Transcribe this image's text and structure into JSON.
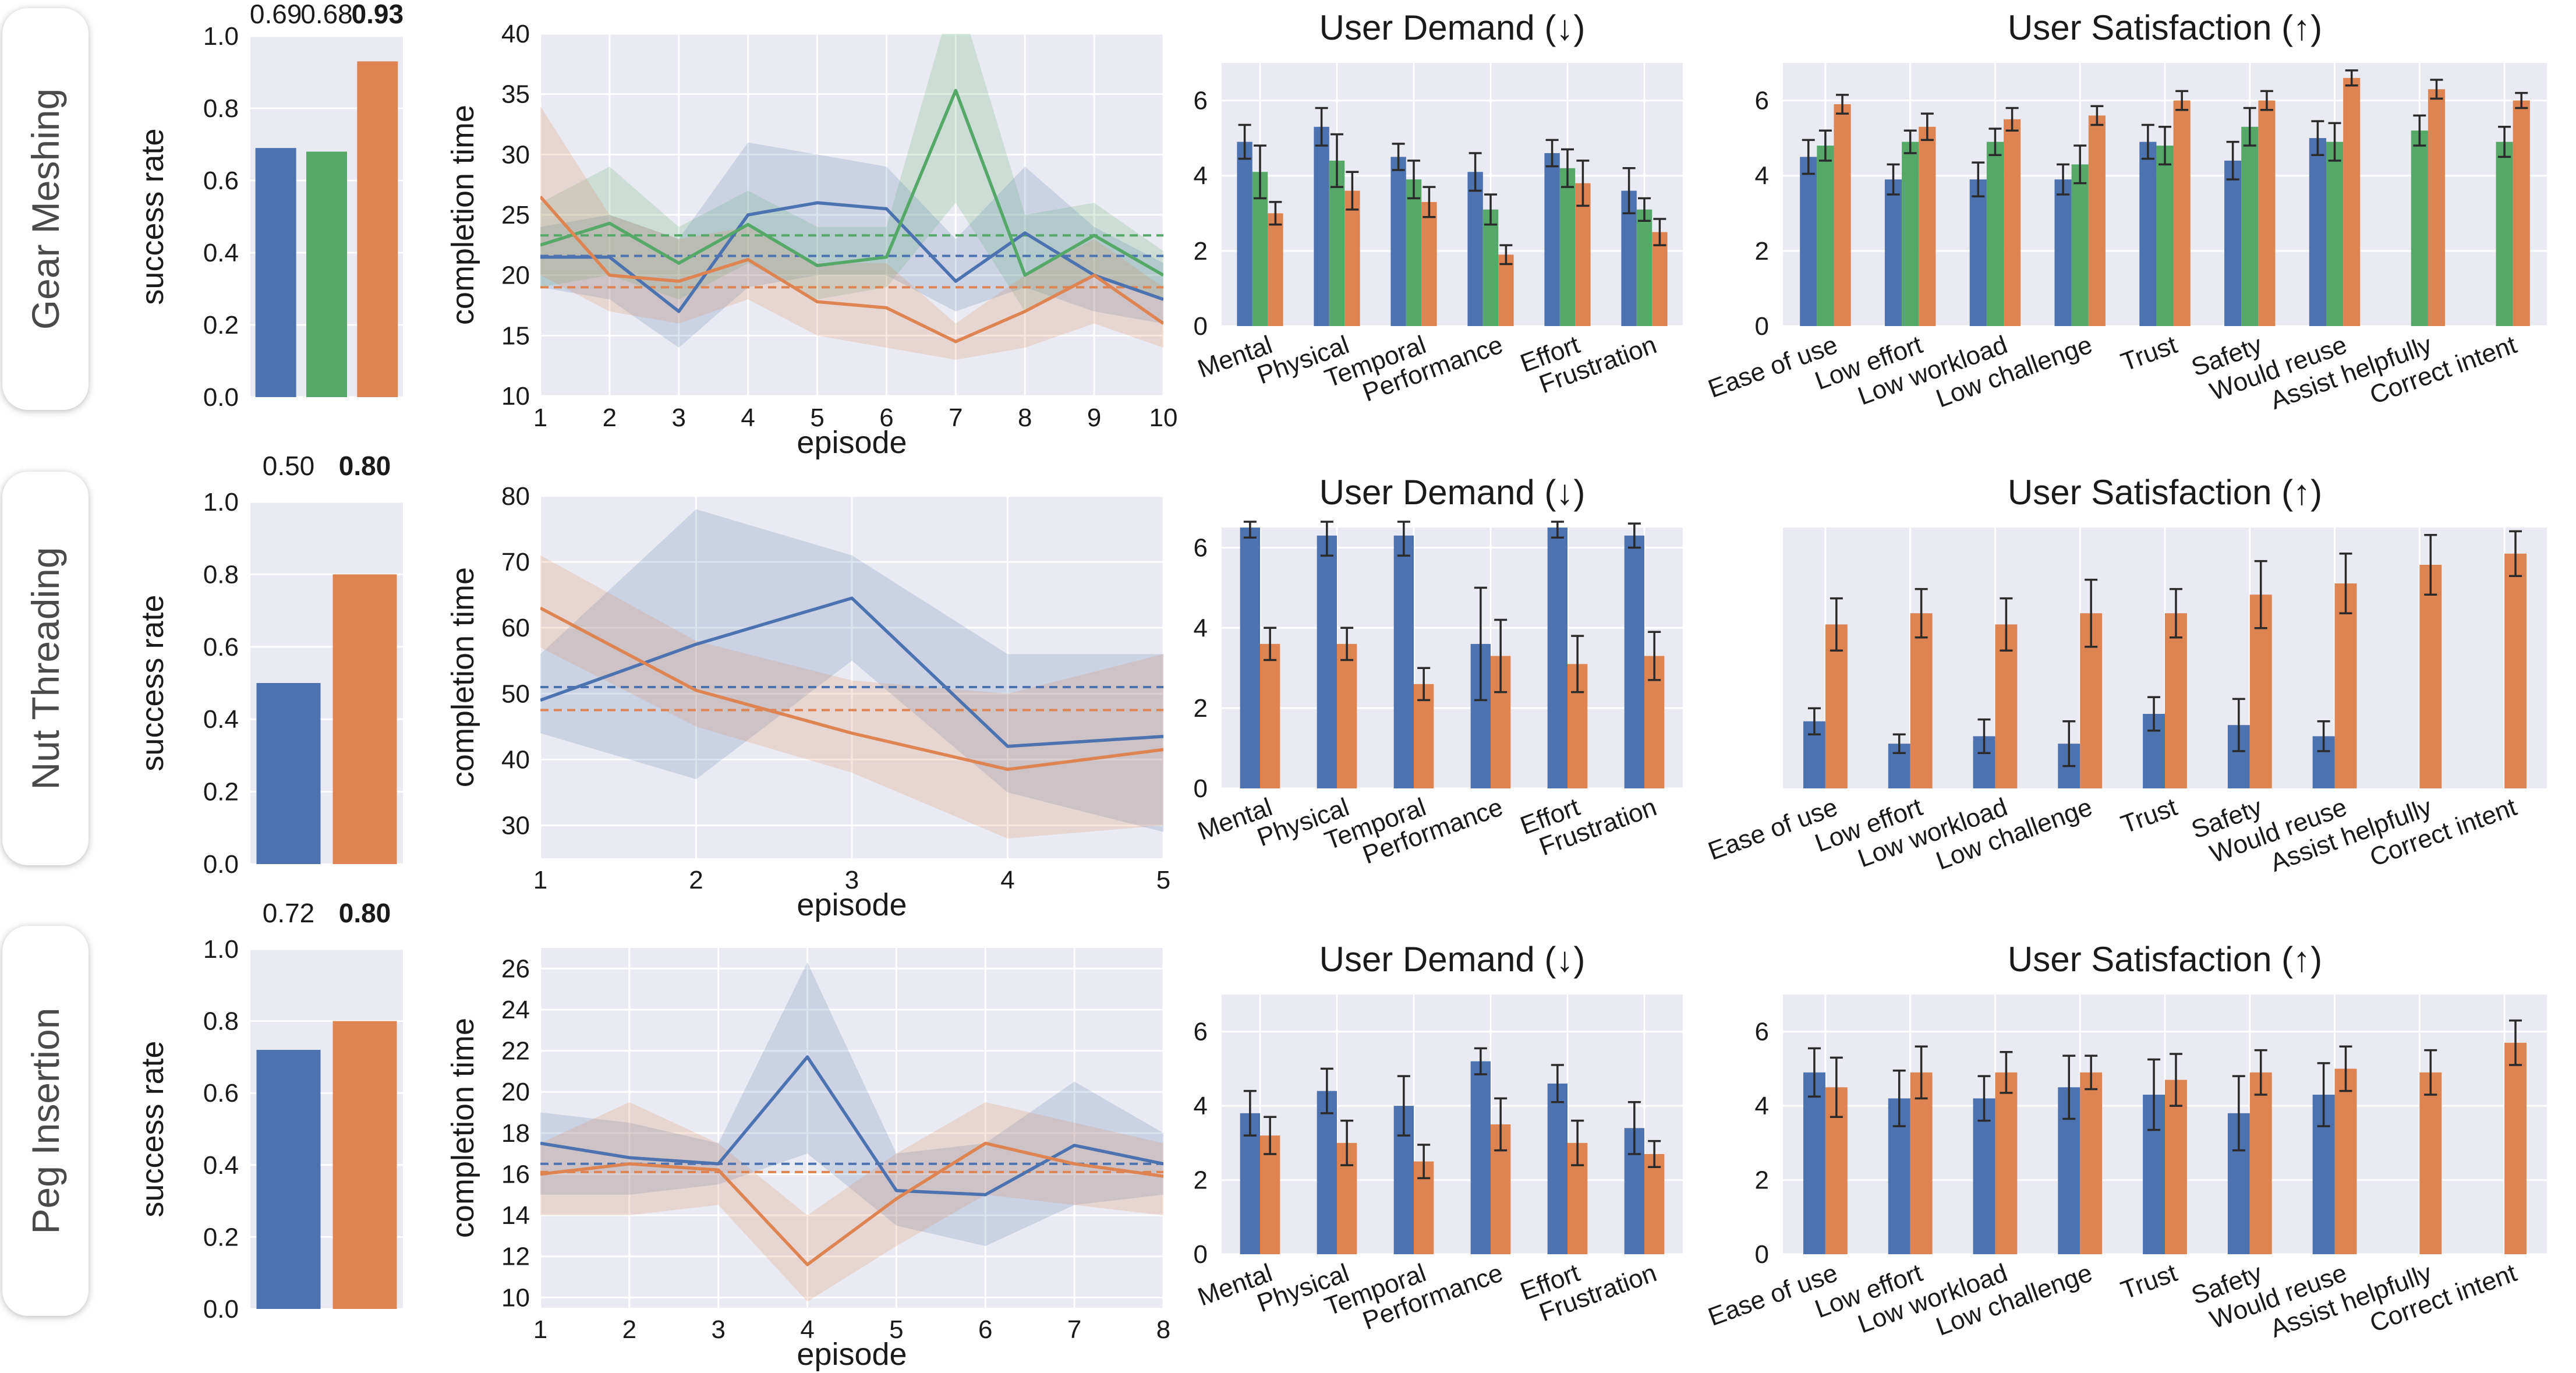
{
  "colors": {
    "baseline": "#4c72b0",
    "green": "#55a868",
    "ours": "#dd8452",
    "panel_bg": "#eaeaf2",
    "grid": "#ffffff"
  },
  "rows": [
    {
      "label": "Gear Meshing"
    },
    {
      "label": "Nut Threading"
    },
    {
      "label": "Peg Insertion"
    }
  ],
  "chart_data": [
    {
      "id": "gm-success",
      "type": "bar",
      "ylabel": "success rate",
      "ylim": [
        0,
        1.0
      ],
      "yticks": [
        "0.0",
        "0.2",
        "0.4",
        "0.6",
        "0.8",
        "1.0"
      ],
      "values": [
        0.69,
        0.68,
        0.93
      ],
      "labels": [
        "0.69",
        "0.68",
        "0.93"
      ],
      "bold": [
        false,
        false,
        true
      ],
      "colors": [
        "baseline",
        "green",
        "ours"
      ]
    },
    {
      "id": "gm-time",
      "type": "line",
      "xlabel": "episode",
      "ylabel": "completion time",
      "xlim": [
        1,
        10
      ],
      "ylim": [
        10,
        40
      ],
      "xticks": [
        "1",
        "2",
        "3",
        "4",
        "5",
        "6",
        "7",
        "8",
        "9",
        "10"
      ],
      "yticks": [
        "10",
        "15",
        "20",
        "25",
        "30",
        "35",
        "40"
      ],
      "series": [
        {
          "color": "baseline",
          "x": [
            1,
            2,
            3,
            4,
            5,
            6,
            7,
            8,
            9,
            10
          ],
          "y": [
            21.5,
            21.5,
            17,
            25,
            26,
            25.5,
            19.5,
            23.5,
            20,
            18
          ],
          "lower": [
            19,
            18,
            14,
            19,
            20,
            20,
            17,
            19,
            17,
            16
          ],
          "upper": [
            24,
            25,
            23,
            31,
            30,
            29,
            23,
            29,
            24,
            21
          ],
          "mean": 21.6
        },
        {
          "color": "green",
          "x": [
            1,
            2,
            3,
            4,
            5,
            6,
            7,
            8,
            9,
            10
          ],
          "y": [
            22.5,
            24.3,
            21,
            24.2,
            20.8,
            21.5,
            35.3,
            20,
            23.3,
            20
          ],
          "lower": [
            19,
            20,
            18,
            21,
            18,
            19,
            26,
            17,
            20,
            18
          ],
          "upper": [
            26,
            29,
            24,
            27,
            24,
            24,
            44,
            25,
            26,
            22
          ],
          "mean": 23.3
        },
        {
          "color": "ours",
          "x": [
            1,
            2,
            3,
            4,
            5,
            6,
            7,
            8,
            9,
            10
          ],
          "y": [
            26.5,
            20,
            19.5,
            21.3,
            17.8,
            17.3,
            14.5,
            17,
            20,
            16
          ],
          "lower": [
            20,
            17,
            16,
            18,
            15,
            14,
            13,
            14,
            16,
            14
          ],
          "upper": [
            34,
            25,
            23,
            24,
            21,
            21,
            16,
            20,
            23,
            19
          ],
          "mean": 19
        }
      ]
    },
    {
      "id": "gm-demand",
      "type": "bar",
      "title": "User Demand (↓)",
      "ylim": [
        0,
        7
      ],
      "yticks": [
        "0",
        "2",
        "4",
        "6"
      ],
      "categories": [
        "Mental",
        "Physical",
        "Temporal",
        "Performance",
        "Effort",
        "Frustration"
      ],
      "series": [
        {
          "color": "baseline",
          "values": [
            4.9,
            5.3,
            4.5,
            4.1,
            4.6,
            3.6
          ],
          "err": [
            0.45,
            0.5,
            0.35,
            0.5,
            0.35,
            0.6
          ]
        },
        {
          "color": "green",
          "values": [
            4.1,
            4.4,
            3.9,
            3.1,
            4.2,
            3.1
          ],
          "err": [
            0.7,
            0.7,
            0.5,
            0.4,
            0.5,
            0.3
          ]
        },
        {
          "color": "ours",
          "values": [
            3.0,
            3.6,
            3.3,
            1.9,
            3.8,
            2.5
          ],
          "err": [
            0.3,
            0.5,
            0.4,
            0.25,
            0.6,
            0.35
          ]
        }
      ]
    },
    {
      "id": "gm-satisfaction",
      "type": "bar",
      "title": "User Satisfaction (↑)",
      "ylim": [
        0,
        7
      ],
      "yticks": [
        "0",
        "2",
        "4",
        "6"
      ],
      "categories": [
        "Ease of use",
        "Low effort",
        "Low workload",
        "Low challenge",
        "Trust",
        "Safety",
        "Would reuse",
        "Assist helpfully",
        "Correct intent"
      ],
      "series": [
        {
          "color": "baseline",
          "values": [
            4.5,
            3.9,
            3.9,
            3.9,
            4.9,
            4.4,
            5.0,
            null,
            null
          ],
          "err": [
            0.45,
            0.4,
            0.45,
            0.4,
            0.45,
            0.5,
            0.45,
            null,
            null
          ]
        },
        {
          "color": "green",
          "values": [
            4.8,
            4.9,
            4.9,
            4.3,
            4.8,
            5.3,
            4.9,
            5.2,
            4.9
          ],
          "err": [
            0.4,
            0.3,
            0.35,
            0.5,
            0.5,
            0.5,
            0.5,
            0.4,
            0.4
          ]
        },
        {
          "color": "ours",
          "values": [
            5.9,
            5.3,
            5.5,
            5.6,
            6.0,
            6.0,
            6.6,
            6.3,
            6.0
          ],
          "err": [
            0.25,
            0.35,
            0.3,
            0.25,
            0.25,
            0.25,
            0.2,
            0.25,
            0.2
          ]
        }
      ]
    },
    {
      "id": "nt-success",
      "type": "bar",
      "ylabel": "success rate",
      "ylim": [
        0,
        1.0
      ],
      "yticks": [
        "0.0",
        "0.2",
        "0.4",
        "0.6",
        "0.8",
        "1.0"
      ],
      "values": [
        0.5,
        0.8
      ],
      "labels": [
        "0.50",
        "0.80"
      ],
      "bold": [
        false,
        true
      ],
      "colors": [
        "baseline",
        "ours"
      ]
    },
    {
      "id": "nt-time",
      "type": "line",
      "xlabel": "episode",
      "ylabel": "completion time",
      "xlim": [
        1,
        5
      ],
      "ylim": [
        25,
        80
      ],
      "xticks": [
        "1",
        "2",
        "3",
        "4",
        "5"
      ],
      "yticks": [
        "30",
        "40",
        "50",
        "60",
        "70",
        "80"
      ],
      "series": [
        {
          "color": "baseline",
          "x": [
            1,
            2,
            3,
            4,
            5
          ],
          "y": [
            49,
            57.5,
            64.5,
            42,
            43.5
          ],
          "lower": [
            44,
            37,
            55,
            35,
            29
          ],
          "upper": [
            56,
            78,
            71,
            56,
            56
          ],
          "mean": 51
        },
        {
          "color": "ours",
          "x": [
            1,
            2,
            3,
            4,
            5
          ],
          "y": [
            63,
            50.5,
            44,
            38.5,
            41.5
          ],
          "lower": [
            57,
            45,
            38,
            28,
            30
          ],
          "upper": [
            71,
            58,
            52,
            50,
            56
          ],
          "mean": 47.5
        }
      ]
    },
    {
      "id": "nt-demand",
      "type": "bar",
      "title": "User Demand (↓)",
      "ylim": [
        0,
        6.5
      ],
      "yticks": [
        "0",
        "2",
        "4",
        "6"
      ],
      "categories": [
        "Mental",
        "Physical",
        "Temporal",
        "Performance",
        "Effort",
        "Frustration"
      ],
      "series": [
        {
          "color": "baseline",
          "values": [
            6.5,
            6.3,
            6.3,
            3.6,
            6.5,
            6.3
          ],
          "err": [
            0.25,
            0.5,
            0.5,
            1.4,
            0.25,
            0.3
          ]
        },
        {
          "color": "ours",
          "values": [
            3.6,
            3.6,
            2.6,
            3.3,
            3.1,
            3.3
          ],
          "err": [
            0.4,
            0.4,
            0.4,
            0.9,
            0.7,
            0.6
          ]
        }
      ]
    },
    {
      "id": "nt-satisfaction",
      "type": "bar",
      "title": "User Satisfaction (↑)",
      "ylim": [
        0,
        7
      ],
      "yticks": [],
      "categories": [
        "Ease of use",
        "Low effort",
        "Low workload",
        "Low challenge",
        "Trust",
        "Safety",
        "Would reuse",
        "Assist helpfully",
        "Correct intent"
      ],
      "series": [
        {
          "color": "baseline",
          "values": [
            1.8,
            1.2,
            1.4,
            1.2,
            2.0,
            1.7,
            1.4,
            null,
            null
          ],
          "err": [
            0.35,
            0.25,
            0.45,
            0.6,
            0.45,
            0.7,
            0.4,
            null,
            null
          ]
        },
        {
          "color": "ours",
          "values": [
            4.4,
            4.7,
            4.4,
            4.7,
            4.7,
            5.2,
            5.5,
            6.0,
            6.3
          ],
          "err": [
            0.7,
            0.65,
            0.7,
            0.9,
            0.65,
            0.9,
            0.8,
            0.8,
            0.6
          ]
        }
      ]
    },
    {
      "id": "pi-success",
      "type": "bar",
      "ylabel": "success rate",
      "ylim": [
        0,
        1.0
      ],
      "yticks": [
        "0.0",
        "0.2",
        "0.4",
        "0.6",
        "0.8",
        "1.0"
      ],
      "values": [
        0.72,
        0.8
      ],
      "labels": [
        "0.72",
        "0.80"
      ],
      "bold": [
        false,
        true
      ],
      "colors": [
        "baseline",
        "ours"
      ]
    },
    {
      "id": "pi-time",
      "type": "line",
      "xlabel": "episode",
      "ylabel": "completion time",
      "xlim": [
        1,
        8
      ],
      "ylim": [
        9.5,
        27
      ],
      "xticks": [
        "1",
        "2",
        "3",
        "4",
        "5",
        "6",
        "7",
        "8"
      ],
      "yticks": [
        "10",
        "12",
        "14",
        "16",
        "18",
        "20",
        "22",
        "24",
        "26"
      ],
      "series": [
        {
          "color": "baseline",
          "x": [
            1,
            2,
            3,
            4,
            5,
            6,
            7,
            8
          ],
          "y": [
            17.5,
            16.8,
            16.5,
            21.7,
            15.2,
            15,
            17.4,
            16.5
          ],
          "lower": [
            15,
            15,
            15.5,
            17,
            13.5,
            12.5,
            14.5,
            15
          ],
          "upper": [
            19,
            18.5,
            17.5,
            26.3,
            17,
            17.5,
            20.5,
            18
          ],
          "mean": 16.5
        },
        {
          "color": "ours",
          "x": [
            1,
            2,
            3,
            4,
            5,
            6,
            7,
            8
          ],
          "y": [
            16,
            16.5,
            16.2,
            11.6,
            14.8,
            17.5,
            16.5,
            15.9
          ],
          "lower": [
            14,
            14,
            14.5,
            9.8,
            12.5,
            15,
            14.5,
            14
          ],
          "upper": [
            17.5,
            19.5,
            17.5,
            14,
            17,
            19.5,
            18.5,
            17.5
          ],
          "mean": 16.1
        }
      ]
    },
    {
      "id": "pi-demand",
      "type": "bar",
      "title": "User Demand (↓)",
      "ylim": [
        0,
        7
      ],
      "yticks": [
        "0",
        "2",
        "4",
        "6"
      ],
      "categories": [
        "Mental",
        "Physical",
        "Temporal",
        "Performance",
        "Effort",
        "Frustration"
      ],
      "series": [
        {
          "color": "baseline",
          "values": [
            3.8,
            4.4,
            4.0,
            5.2,
            4.6,
            3.4
          ],
          "err": [
            0.6,
            0.6,
            0.8,
            0.35,
            0.5,
            0.7
          ]
        },
        {
          "color": "ours",
          "values": [
            3.2,
            3.0,
            2.5,
            3.5,
            3.0,
            2.7
          ],
          "err": [
            0.5,
            0.6,
            0.45,
            0.7,
            0.6,
            0.35
          ]
        }
      ]
    },
    {
      "id": "pi-satisfaction",
      "type": "bar",
      "title": "User Satisfaction (↑)",
      "ylim": [
        0,
        7
      ],
      "yticks": [
        "0",
        "2",
        "4",
        "6"
      ],
      "categories": [
        "Ease of use",
        "Low effort",
        "Low workload",
        "Low challenge",
        "Trust",
        "Safety",
        "Would reuse",
        "Assist helpfully",
        "Correct intent"
      ],
      "series": [
        {
          "color": "baseline",
          "values": [
            4.9,
            4.2,
            4.2,
            4.5,
            4.3,
            3.8,
            4.3,
            null,
            null
          ],
          "err": [
            0.65,
            0.75,
            0.6,
            0.85,
            0.95,
            1.0,
            0.85,
            null,
            null
          ]
        },
        {
          "color": "ours",
          "values": [
            4.5,
            4.9,
            4.9,
            4.9,
            4.7,
            4.9,
            5.0,
            4.9,
            5.7
          ],
          "err": [
            0.8,
            0.7,
            0.55,
            0.45,
            0.7,
            0.6,
            0.6,
            0.6,
            0.6
          ]
        }
      ]
    }
  ]
}
